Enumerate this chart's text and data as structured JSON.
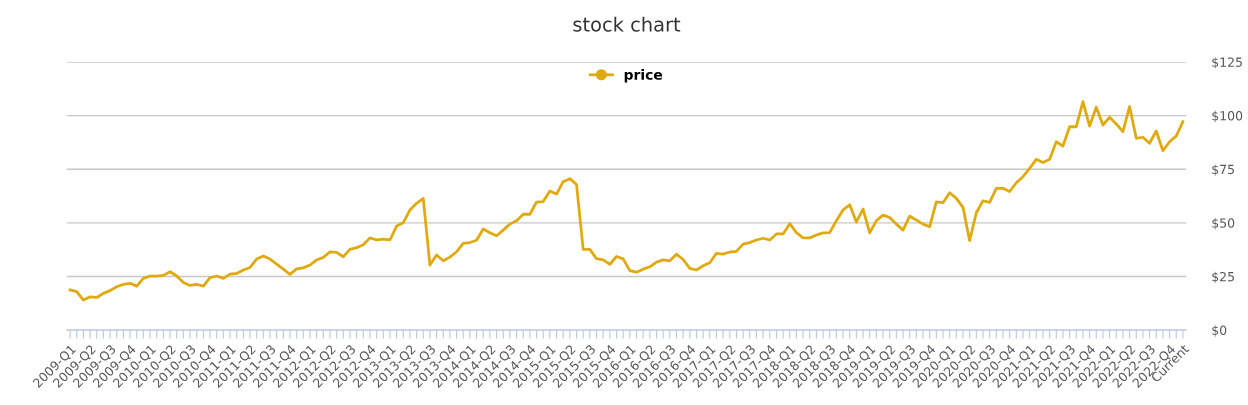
{
  "chart_data": {
    "type": "line",
    "title": "stock chart",
    "categories": [
      "2009-Q1",
      null,
      null,
      "2009-Q2",
      null,
      null,
      "2009-Q3",
      null,
      null,
      "2009-Q4",
      null,
      null,
      "2010-Q1",
      null,
      null,
      "2010-Q2",
      null,
      null,
      "2010-Q3",
      null,
      null,
      "2010-Q4",
      null,
      null,
      "2011-Q1",
      null,
      null,
      "2011-Q2",
      null,
      null,
      "2011-Q3",
      null,
      null,
      "2011-Q4",
      null,
      null,
      "2012-Q1",
      null,
      null,
      "2012-Q2",
      null,
      null,
      "2012-Q3",
      null,
      null,
      "2012-Q4",
      null,
      null,
      "2013-Q1",
      null,
      null,
      "2013-Q2",
      null,
      null,
      "2013-Q3",
      null,
      null,
      "2013-Q4",
      null,
      null,
      "2014-Q1",
      null,
      null,
      "2014-Q2",
      null,
      null,
      "2014-Q3",
      null,
      null,
      "2014-Q4",
      null,
      null,
      "2015-Q1",
      null,
      null,
      "2015-Q2",
      null,
      null,
      "2015-Q3",
      null,
      null,
      "2015-Q4",
      null,
      null,
      "2016-Q1",
      null,
      null,
      "2016-Q2",
      null,
      null,
      "2016-Q3",
      null,
      null,
      "2016-Q4",
      null,
      null,
      "2017-Q1",
      null,
      null,
      "2017-Q2",
      null,
      null,
      "2017-Q3",
      null,
      null,
      "2017-Q4",
      null,
      null,
      "2018-Q1",
      null,
      null,
      "2018-Q2",
      null,
      null,
      "2018-Q3",
      null,
      null,
      "2018-Q4",
      null,
      null,
      "2019-Q1",
      null,
      null,
      "2019-Q2",
      null,
      null,
      "2019-Q3",
      null,
      null,
      "2019-Q4",
      null,
      null,
      "2020-Q1",
      null,
      null,
      "2020-Q2",
      null,
      null,
      "2020-Q3",
      null,
      null,
      "2020-Q4",
      null,
      null,
      "2021-Q1",
      null,
      null,
      "2021-Q2",
      null,
      null,
      "2021-Q3",
      null,
      null,
      "2021-Q4",
      null,
      null,
      "2022-Q1",
      null,
      null,
      "2022-Q2",
      null,
      null,
      "2022-Q3",
      null,
      null,
      "2022-Q4",
      null,
      "Current"
    ],
    "series": [
      {
        "name": "price",
        "color": "#e0aa0f",
        "values": [
          18.7,
          17.9,
          14,
          15.5,
          15.2,
          17.1,
          18.4,
          20.2,
          21.3,
          21.8,
          20.5,
          24.1,
          25.2,
          25.2,
          25.5,
          27.2,
          25.2,
          22.2,
          20.8,
          21.3,
          20.5,
          24.4,
          25.2,
          24.1,
          26.1,
          26.4,
          28,
          29.2,
          33.1,
          34.5,
          33.1,
          30.8,
          28.4,
          26,
          28.5,
          29,
          30.3,
          32.7,
          33.9,
          36.5,
          36.2,
          34.2,
          37.6,
          38.4,
          39.8,
          43,
          42,
          42.4,
          42,
          48.5,
          50,
          56,
          59.1,
          61.4,
          30.3,
          35,
          32.3,
          34,
          36.5,
          40.4,
          40.8,
          41.9,
          47.1,
          45.4,
          44,
          46.6,
          49.4,
          51,
          54,
          54,
          59.7,
          59.9,
          64.8,
          63.4,
          69.2,
          70.6,
          67.9,
          37.6,
          37.6,
          33.3,
          32.7,
          30.7,
          34.3,
          33.2,
          27.7,
          27,
          28.4,
          29.5,
          31.7,
          32.7,
          32.3,
          35.4,
          32.9,
          28.8,
          28,
          30,
          31.4,
          35.8,
          35.4,
          36.4,
          36.7,
          40.1,
          40.8,
          42,
          42.8,
          42,
          44.8,
          44.8,
          49.6,
          45.4,
          43,
          43,
          44.3,
          45.3,
          45.4,
          51,
          56,
          58.4,
          50.4,
          56.4,
          45.3,
          51,
          53.6,
          52.5,
          49.4,
          46.6,
          53.1,
          51.3,
          49.4,
          48.2,
          59.8,
          59.4,
          64,
          61.4,
          57.2,
          41.7,
          54.7,
          60.3,
          59.5,
          66.1,
          66.1,
          64.6,
          68.7,
          71.5,
          75.4,
          79.6,
          78.1,
          79.6,
          87.8,
          85.8,
          94.8,
          94.8,
          106.5,
          95.1,
          103.9,
          95.6,
          99.2,
          96.1,
          92.5,
          104.2,
          89.4,
          89.9,
          87.1,
          92.8,
          83.6,
          87.8,
          90.4,
          97.2
        ]
      }
    ],
    "ylim": [
      0,
      125
    ],
    "yticks": [
      {
        "value": 0,
        "label": "$0"
      },
      {
        "value": 25,
        "label": "$25"
      },
      {
        "value": 50,
        "label": "$50"
      },
      {
        "value": 75,
        "label": "$75"
      },
      {
        "value": 100,
        "label": "$100"
      },
      {
        "value": 125,
        "label": "$125"
      }
    ],
    "grid": "y",
    "legend": "top",
    "marker": "none",
    "line_style": "solid"
  }
}
